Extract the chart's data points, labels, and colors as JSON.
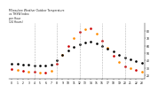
{
  "title_line1": "Milwaukee Weather Outdoor Temperature",
  "title_line2": "vs THSW Index",
  "title_line3": "per Hour",
  "title_line4": "(24 Hours)",
  "hours": [
    0,
    1,
    2,
    3,
    4,
    5,
    6,
    7,
    8,
    9,
    10,
    11,
    12,
    13,
    14,
    15,
    16,
    17,
    18,
    19,
    20,
    21,
    22,
    23
  ],
  "temp": [
    36,
    35,
    34,
    34,
    33,
    33,
    33,
    34,
    40,
    47,
    53,
    58,
    62,
    64,
    65,
    63,
    60,
    56,
    52,
    48,
    44,
    41,
    39,
    37
  ],
  "thsw": [
    28,
    27,
    26,
    25,
    25,
    24,
    24,
    26,
    36,
    48,
    60,
    70,
    78,
    82,
    83,
    76,
    66,
    57,
    46,
    38,
    32,
    29,
    27,
    25
  ],
  "temp_color": "#000000",
  "thsw_color_orange": "#FF8C00",
  "thsw_color_red": "#CC0000",
  "grid_color": "#aaaaaa",
  "background_color": "#ffffff",
  "ylim_min": 15,
  "ylim_max": 90,
  "ytick_values": [
    20,
    30,
    40,
    50,
    60,
    70,
    80
  ],
  "ytick_labels": [
    "20",
    "30",
    "40",
    "50",
    "60",
    "70",
    "80"
  ],
  "grid_x_positions": [
    4,
    8,
    12,
    16,
    20
  ],
  "markersize": 1.8
}
